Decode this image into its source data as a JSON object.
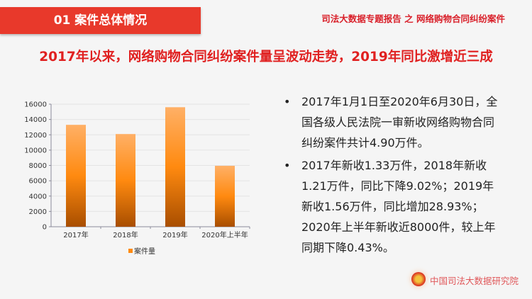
{
  "header": {
    "section": "01  案件总体情况",
    "report_title": "司法大数据专题报告 之 网络购物合同纠纷案件"
  },
  "headline": "2017年以来，网络购物合同纠纷案件量呈波动走势，2019年同比激增近三成",
  "bullets": [
    "2017年1月1日至2020年6月30日，全国各级人民法院一审新收网络购物合同纠纷案件共计4.90万件。",
    "2017年新收1.33万件，2018年新收1.21万件，同比下降9.02%；2019年新收1.56万件，同比增加28.93%；2020年上半年新收近8000件，较上年同期下降0.43%。"
  ],
  "footer": {
    "org": "中国司法大数据研究院",
    "emblem_icon": "court-emblem-icon"
  },
  "colors": {
    "accent": "#e8392b",
    "bar_top": "#ffb066",
    "bar_mid": "#ff8a10",
    "bar_bottom": "#a84e00"
  },
  "chart_data": {
    "type": "bar",
    "categories": [
      "2017年",
      "2018年",
      "2019年",
      "2020年上半年"
    ],
    "series": [
      {
        "name": "案件量",
        "values": [
          13300,
          12100,
          15600,
          7950
        ]
      }
    ],
    "ylim": [
      0,
      16000
    ],
    "yticks": [
      "0",
      "2000",
      "4000",
      "6000",
      "8000",
      "10000",
      "12000",
      "14000",
      "16000"
    ],
    "grid": true,
    "legend": "bottom"
  }
}
